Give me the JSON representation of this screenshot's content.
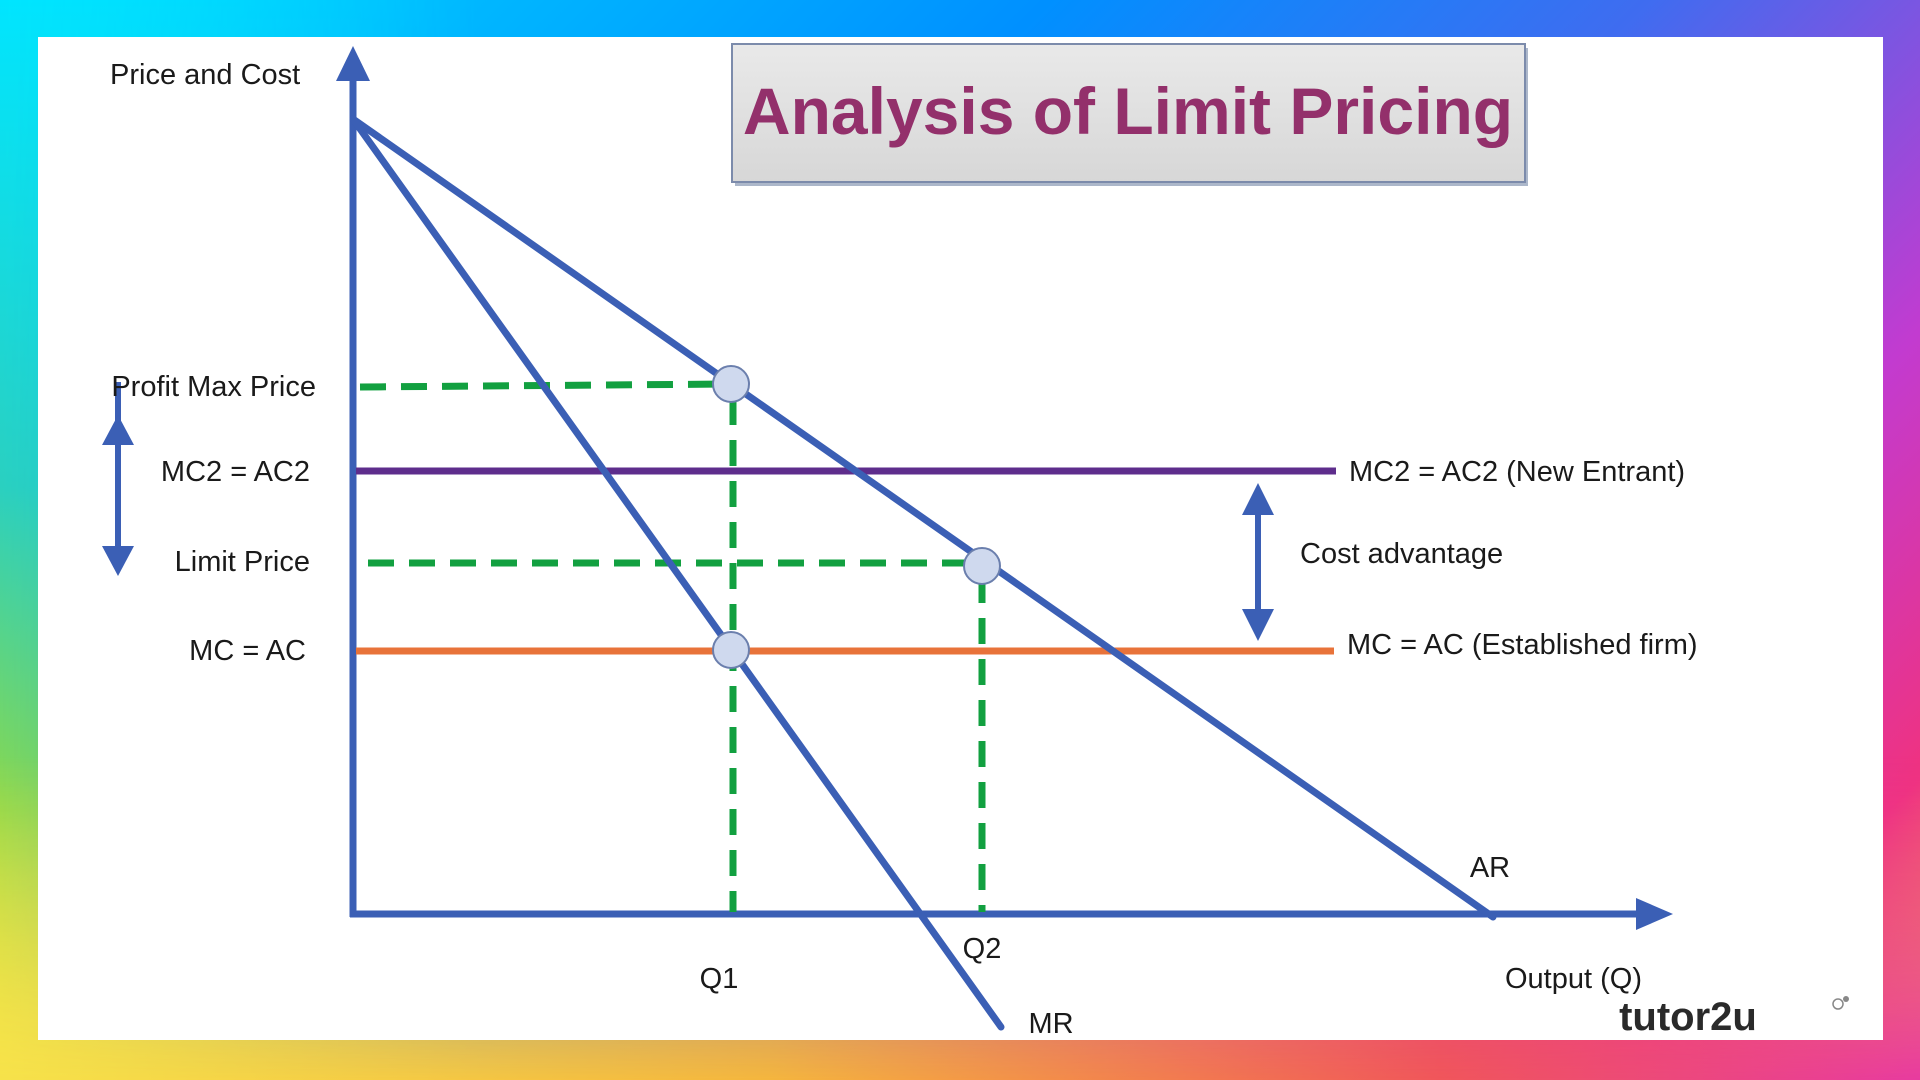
{
  "title": "Analysis of Limit Pricing",
  "axes": {
    "y_label": "Price and Cost",
    "x_label": "Output (Q)"
  },
  "price_labels": {
    "profit_max_price": "Profit Max Price",
    "mc2_ac2": "MC2 = AC2",
    "limit_price": "Limit Price",
    "mc_ac": "MC = AC"
  },
  "quantity_labels": {
    "q1": "Q1",
    "q2": "Q2"
  },
  "curve_labels": {
    "ar": "AR",
    "mr": "MR",
    "mc2_line": "MC2 = AC2 (New Entrant)",
    "mc_line": "MC = AC (Established firm)"
  },
  "annotation": {
    "cost_advantage": "Cost advantage"
  },
  "brand": "tutor2u",
  "colors": {
    "curve_blue": "#3b5fb5",
    "dashed_green": "#12a040",
    "mc2_purple": "#5e2d8c",
    "mc_orange": "#e8733a",
    "title_purple": "#93306b",
    "point_fill": "#cfd9ee"
  }
}
